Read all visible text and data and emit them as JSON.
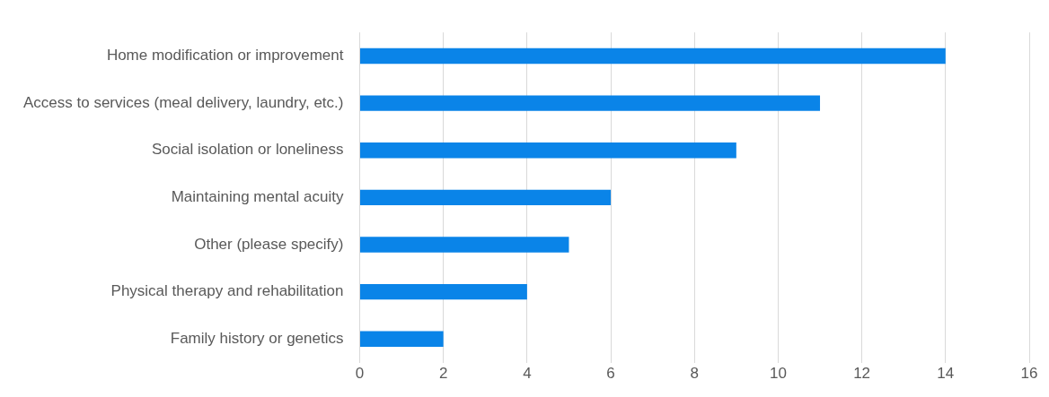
{
  "chart_data": {
    "type": "bar",
    "orientation": "horizontal",
    "categories": [
      "Home modification or improvement",
      "Access to services (meal delivery, laundry, etc.)",
      "Social isolation or loneliness",
      "Maintaining mental acuity",
      "Other (please specify)",
      "Physical therapy and rehabilitation",
      "Family history or genetics"
    ],
    "values": [
      14,
      11,
      9,
      6,
      5,
      4,
      2
    ],
    "color": "#0a84e8",
    "xlim": [
      0,
      16
    ],
    "xticks": [
      0,
      2,
      4,
      6,
      8,
      10,
      12,
      14,
      16
    ],
    "grid": "x"
  }
}
